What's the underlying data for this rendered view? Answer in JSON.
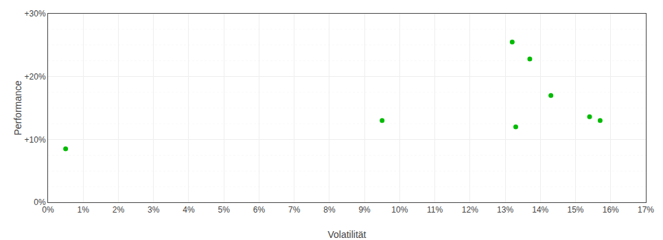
{
  "chart_data": {
    "type": "scatter",
    "xlabel": "Volatilität",
    "ylabel": "Performance",
    "x": [
      0.005,
      0.095,
      0.132,
      0.137,
      0.133,
      0.143,
      0.154,
      0.157
    ],
    "values": [
      0.085,
      0.13,
      0.255,
      0.228,
      0.12,
      0.17,
      0.136,
      0.13
    ],
    "color": "#00bb00",
    "marker": "circle",
    "xlim": [
      0,
      0.17
    ],
    "ylim": [
      0,
      0.3
    ],
    "xticks": [
      {
        "value": 0.0,
        "label": "0%"
      },
      {
        "value": 0.01,
        "label": "1%"
      },
      {
        "value": 0.02,
        "label": "2%"
      },
      {
        "value": 0.03,
        "label": "3%"
      },
      {
        "value": 0.04,
        "label": "4%"
      },
      {
        "value": 0.05,
        "label": "5%"
      },
      {
        "value": 0.06,
        "label": "6%"
      },
      {
        "value": 0.07,
        "label": "7%"
      },
      {
        "value": 0.08,
        "label": "8%"
      },
      {
        "value": 0.09,
        "label": "9%"
      },
      {
        "value": 0.1,
        "label": "10%"
      },
      {
        "value": 0.11,
        "label": "11%"
      },
      {
        "value": 0.12,
        "label": "12%"
      },
      {
        "value": 0.13,
        "label": "13%"
      },
      {
        "value": 0.14,
        "label": "14%"
      },
      {
        "value": 0.15,
        "label": "15%"
      },
      {
        "value": 0.16,
        "label": "16%"
      },
      {
        "value": 0.17,
        "label": "17%"
      }
    ],
    "yticks": [
      {
        "value": 0.0,
        "label": "0%"
      },
      {
        "value": 0.1,
        "label": "+10%"
      },
      {
        "value": 0.2,
        "label": "+20%"
      },
      {
        "value": 0.3,
        "label": "+30%"
      }
    ],
    "minor_yticks": [
      0.025,
      0.05,
      0.075,
      0.125,
      0.15,
      0.175,
      0.225,
      0.25,
      0.275
    ],
    "grid": true
  }
}
